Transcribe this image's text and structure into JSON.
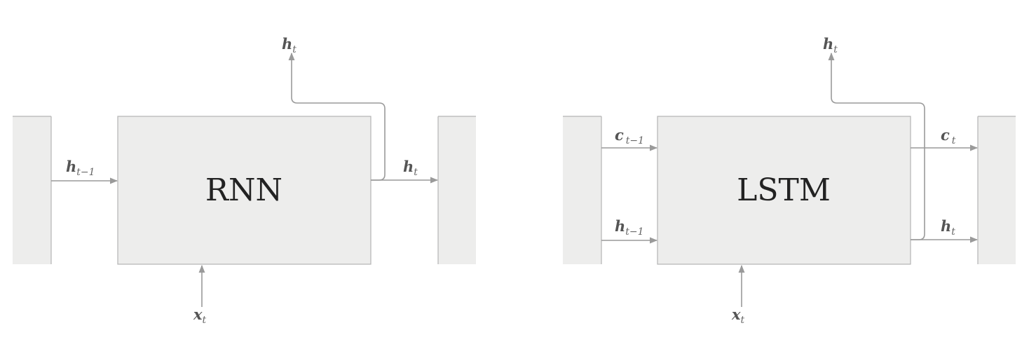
{
  "rnn": {
    "title": "RNN",
    "labels": {
      "h_in": "h",
      "h_in_sub": "t−1",
      "h_right": "h",
      "h_right_sub": "t",
      "h_up": "h",
      "h_up_sub": "t",
      "x_in": "x",
      "x_in_sub": "t"
    }
  },
  "lstm": {
    "title": "LSTM",
    "labels": {
      "c_in": "c",
      "c_in_sub": "t−1",
      "h_in": "h",
      "h_in_sub": "t−1",
      "c_out": "c",
      "c_out_sub": "t",
      "h_out": "h",
      "h_out_sub": "t",
      "h_up": "h",
      "h_up_sub": "t",
      "x_in": "x",
      "x_in_sub": "t"
    }
  },
  "colors": {
    "box_fill": "#ededec",
    "box_stroke": "#b4b4b4",
    "wire": "#9a9a9a",
    "title": "#222222",
    "label": "#555555"
  }
}
